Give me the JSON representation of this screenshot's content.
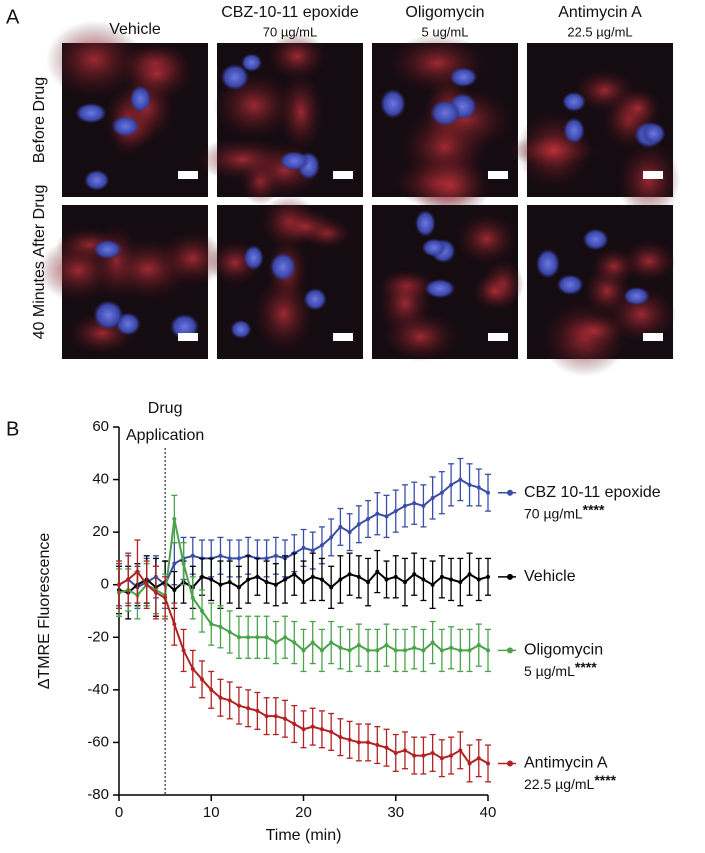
{
  "panel_a": {
    "label": "A",
    "columns": [
      {
        "title": "Vehicle"
      },
      {
        "title": "CBZ-10-11 epoxide",
        "dose": "70 µg/mL"
      },
      {
        "title": "Oligomycin",
        "dose": "5 ug/mL"
      },
      {
        "title": "Antimycin A",
        "dose": "22.5 µg/mL"
      }
    ],
    "rows": [
      "Before Drug",
      "40 Minutes After Drug"
    ]
  },
  "chart_data": {
    "type": "line",
    "panel_label": "B",
    "xlabel": "Time (min)",
    "ylabel": "ΔTMRE Fluorescence",
    "xlim": [
      0,
      40
    ],
    "ylim": [
      -80,
      60
    ],
    "xticks": [
      0,
      10,
      20,
      30,
      40
    ],
    "yticks": [
      -80,
      -60,
      -40,
      -20,
      0,
      20,
      40,
      60
    ],
    "annotation": {
      "x": 5,
      "text": [
        "Drug",
        "Application"
      ]
    },
    "x": [
      0,
      1,
      2,
      3,
      4,
      5,
      6,
      7,
      8,
      9,
      10,
      11,
      12,
      13,
      14,
      15,
      16,
      17,
      18,
      19,
      20,
      21,
      22,
      23,
      24,
      25,
      26,
      27,
      28,
      29,
      30,
      31,
      32,
      33,
      34,
      35,
      36,
      37,
      38,
      39,
      40
    ],
    "series": [
      {
        "name": "CBZ 10-11 epoxide",
        "dose": "70 µg/mL",
        "significance": "****",
        "color": "#3a4ea8",
        "values": [
          0,
          2,
          -1,
          1,
          3,
          0,
          8,
          10,
          11,
          10,
          10,
          11,
          10,
          10,
          11,
          10,
          10,
          11,
          10,
          12,
          14,
          13,
          15,
          18,
          22,
          20,
          23,
          25,
          27,
          26,
          28,
          30,
          31,
          30,
          33,
          35,
          38,
          40,
          38,
          37,
          35
        ],
        "errors": [
          8,
          9,
          8,
          9,
          8,
          9,
          8,
          8,
          7,
          7,
          7,
          7,
          7,
          7,
          7,
          7,
          7,
          7,
          7,
          7,
          7,
          7,
          7,
          7,
          7,
          7,
          7,
          7,
          8,
          8,
          8,
          8,
          8,
          8,
          8,
          8,
          8,
          8,
          8,
          7,
          7
        ]
      },
      {
        "name": "Vehicle",
        "color": "#000000",
        "values": [
          -2,
          -3,
          0,
          2,
          -1,
          1,
          -2,
          1,
          -1,
          3,
          2,
          0,
          1,
          -1,
          2,
          3,
          1,
          0,
          2,
          4,
          1,
          3,
          2,
          -1,
          2,
          4,
          3,
          1,
          5,
          2,
          3,
          1,
          4,
          2,
          0,
          3,
          2,
          1,
          4,
          2,
          3
        ],
        "errors": [
          9,
          10,
          8,
          9,
          11,
          8,
          7,
          8,
          8,
          7,
          8,
          9,
          8,
          8,
          9,
          7,
          8,
          8,
          9,
          8,
          8,
          9,
          8,
          8,
          9,
          8,
          8,
          9,
          8,
          7,
          8,
          9,
          8,
          8,
          9,
          8,
          8,
          9,
          8,
          8,
          7
        ]
      },
      {
        "name": "Oligomycin",
        "dose": "5 µg/mL",
        "significance": "****",
        "color": "#4aa34a",
        "values": [
          -3,
          -2,
          -4,
          0,
          -2,
          -4,
          25,
          8,
          -5,
          -10,
          -15,
          -16,
          -18,
          -20,
          -20,
          -20,
          -20,
          -22,
          -20,
          -22,
          -25,
          -22,
          -25,
          -22,
          -24,
          -25,
          -23,
          -25,
          -25,
          -23,
          -25,
          -25,
          -24,
          -25,
          -22,
          -25,
          -24,
          -25,
          -25,
          -23,
          -25
        ],
        "errors": [
          9,
          8,
          9,
          8,
          9,
          8,
          9,
          8,
          8,
          8,
          8,
          8,
          8,
          8,
          8,
          8,
          8,
          8,
          8,
          8,
          8,
          8,
          8,
          8,
          8,
          8,
          8,
          8,
          8,
          8,
          8,
          8,
          8,
          8,
          8,
          8,
          8,
          8,
          8,
          8,
          8
        ]
      },
      {
        "name": "Antimycin A",
        "dose": "22.5 µg/mL",
        "significance": "****",
        "color": "#b22222",
        "values": [
          0,
          2,
          5,
          0,
          -3,
          -5,
          -15,
          -25,
          -32,
          -36,
          -40,
          -43,
          -44,
          -46,
          -47,
          -48,
          -50,
          -50,
          -51,
          -53,
          -55,
          -54,
          -55,
          -56,
          -58,
          -59,
          -60,
          -60,
          -61,
          -62,
          -64,
          -63,
          -65,
          -65,
          -64,
          -66,
          -65,
          -63,
          -68,
          -66,
          -68
        ],
        "errors": [
          9,
          10,
          12,
          9,
          10,
          8,
          8,
          8,
          7,
          7,
          7,
          7,
          7,
          7,
          7,
          7,
          7,
          7,
          7,
          7,
          7,
          7,
          7,
          7,
          7,
          7,
          7,
          7,
          7,
          7,
          7,
          7,
          7,
          7,
          7,
          7,
          7,
          7,
          7,
          7,
          7
        ]
      }
    ]
  }
}
